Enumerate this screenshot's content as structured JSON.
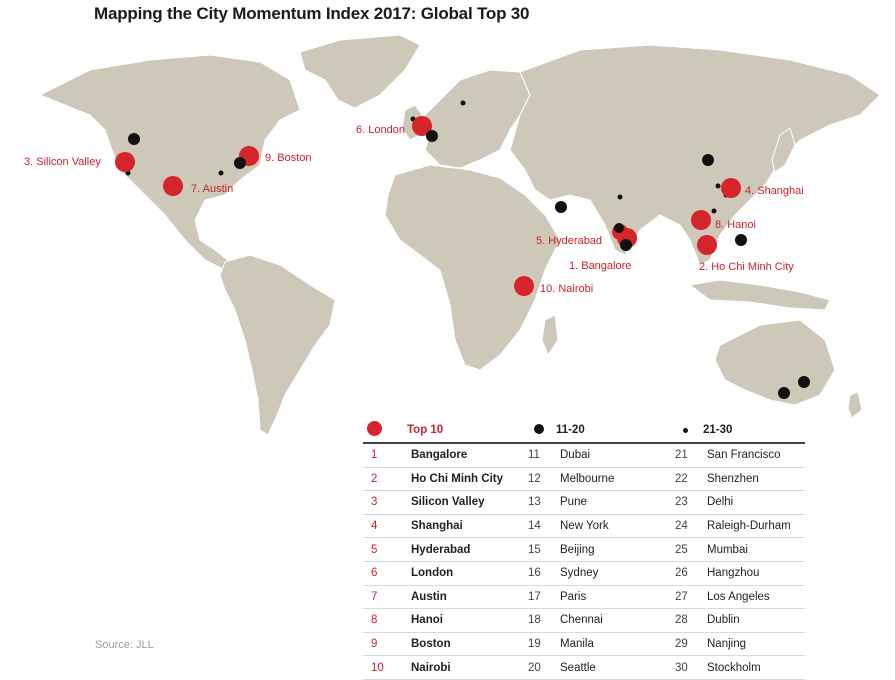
{
  "title": "Mapping the City Momentum Index 2017: Global Top 30",
  "source": "Source: JLL",
  "colors": {
    "top10": "#d6242b",
    "rank11_20": "#111111",
    "rank21_30": "#111111",
    "land": "#cec8b9",
    "label": "#c8232b"
  },
  "legend_header": {
    "top10": "Top 10",
    "mid": "11-20",
    "low": "21-30"
  },
  "map_labels": [
    {
      "label": "1. Bangalore"
    },
    {
      "label": "2. Ho Chi Minh City"
    },
    {
      "label": "3. Silicon Valley"
    },
    {
      "label": "4. Shanghai"
    },
    {
      "label": "5. Hyderabad"
    },
    {
      "label": "6. London"
    },
    {
      "label": "7. Austin"
    },
    {
      "label": "8. Hanoi"
    },
    {
      "label": "9. Boston"
    },
    {
      "label": "10. Nairobi"
    }
  ],
  "rows": [
    {
      "r1": "1",
      "c1": "Bangalore",
      "r2": "11",
      "c2": "Dubai",
      "r3": "21",
      "c3": "San Francisco"
    },
    {
      "r1": "2",
      "c1": "Ho Chi Minh City",
      "r2": "12",
      "c2": "Melbourne",
      "r3": "22",
      "c3": "Shenzhen"
    },
    {
      "r1": "3",
      "c1": "Silicon Valley",
      "r2": "13",
      "c2": "Pune",
      "r3": "23",
      "c3": "Delhi"
    },
    {
      "r1": "4",
      "c1": "Shanghai",
      "r2": "14",
      "c2": "New York",
      "r3": "24",
      "c3": "Raleigh-Durham"
    },
    {
      "r1": "5",
      "c1": "Hyderabad",
      "r2": "15",
      "c2": "Beijing",
      "r3": "25",
      "c3": "Mumbai"
    },
    {
      "r1": "6",
      "c1": "London",
      "r2": "16",
      "c2": "Sydney",
      "r3": "26",
      "c3": "Hangzhou"
    },
    {
      "r1": "7",
      "c1": "Austin",
      "r2": "17",
      "c2": "Paris",
      "r3": "27",
      "c3": "Los Angeles"
    },
    {
      "r1": "8",
      "c1": "Hanoi",
      "r2": "18",
      "c2": "Chennai",
      "r3": "28",
      "c3": "Dublin"
    },
    {
      "r1": "9",
      "c1": "Boston",
      "r2": "19",
      "c2": "Manila",
      "r3": "29",
      "c3": "Nanjing"
    },
    {
      "r1": "10",
      "c1": "Nairobi",
      "r2": "20",
      "c2": "Seattle",
      "r3": "30",
      "c3": "Stockholm"
    }
  ]
}
